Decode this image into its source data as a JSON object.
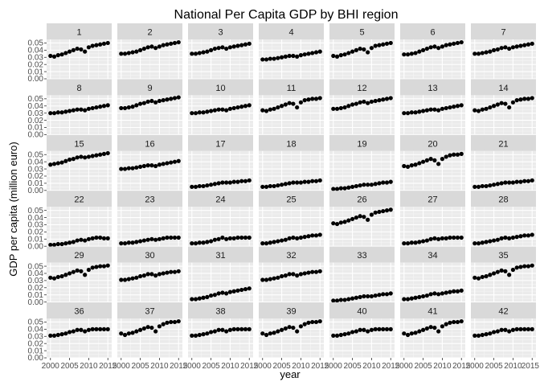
{
  "chart_data": {
    "type": "scatter",
    "title": "National Per Capita GDP by BHI region",
    "xlabel": "year",
    "ylabel": "GDP per capita (million euro)",
    "xlim": [
      1999,
      2016
    ],
    "ylim": [
      0.0,
      0.055
    ],
    "x_ticks": [
      2000,
      2005,
      2010,
      2015
    ],
    "x_tick_labels": [
      "2000",
      "2005",
      "2010",
      "2015"
    ],
    "y_ticks": [
      0.0,
      0.01,
      0.02,
      0.03,
      0.04,
      0.05
    ],
    "y_tick_labels": [
      "0.00",
      "0.01",
      "0.02",
      "0.03",
      "0.04",
      "0.05"
    ],
    "grid": true,
    "facet_layout": {
      "rows": 6,
      "cols": 7
    },
    "x": [
      2000,
      2001,
      2002,
      2003,
      2004,
      2005,
      2006,
      2007,
      2008,
      2009,
      2010,
      2011,
      2012,
      2013,
      2014,
      2015
    ],
    "panels": [
      {
        "label": "1",
        "values": [
          0.032,
          0.031,
          0.033,
          0.034,
          0.036,
          0.038,
          0.04,
          0.042,
          0.041,
          0.038,
          0.044,
          0.046,
          0.047,
          0.048,
          0.049,
          0.05
        ]
      },
      {
        "label": "2",
        "values": [
          0.035,
          0.035,
          0.036,
          0.037,
          0.038,
          0.04,
          0.042,
          0.044,
          0.045,
          0.043,
          0.045,
          0.047,
          0.048,
          0.049,
          0.05,
          0.051
        ]
      },
      {
        "label": "3",
        "values": [
          0.035,
          0.035,
          0.036,
          0.037,
          0.038,
          0.04,
          0.042,
          0.043,
          0.044,
          0.042,
          0.044,
          0.045,
          0.046,
          0.047,
          0.048,
          0.049
        ]
      },
      {
        "label": "4",
        "values": [
          0.027,
          0.027,
          0.028,
          0.028,
          0.029,
          0.03,
          0.031,
          0.032,
          0.032,
          0.031,
          0.033,
          0.034,
          0.035,
          0.036,
          0.037,
          0.038
        ]
      },
      {
        "label": "5",
        "values": [
          0.032,
          0.031,
          0.033,
          0.034,
          0.036,
          0.038,
          0.04,
          0.042,
          0.041,
          0.037,
          0.043,
          0.046,
          0.047,
          0.048,
          0.049,
          0.05
        ]
      },
      {
        "label": "6",
        "values": [
          0.034,
          0.034,
          0.035,
          0.036,
          0.038,
          0.04,
          0.042,
          0.044,
          0.045,
          0.043,
          0.045,
          0.047,
          0.048,
          0.049,
          0.05,
          0.051
        ]
      },
      {
        "label": "7",
        "values": [
          0.035,
          0.035,
          0.036,
          0.037,
          0.038,
          0.04,
          0.041,
          0.043,
          0.044,
          0.042,
          0.044,
          0.045,
          0.046,
          0.047,
          0.048,
          0.049
        ]
      },
      {
        "label": "8",
        "values": [
          0.03,
          0.03,
          0.031,
          0.031,
          0.032,
          0.033,
          0.034,
          0.035,
          0.035,
          0.034,
          0.036,
          0.037,
          0.038,
          0.039,
          0.04,
          0.041
        ]
      },
      {
        "label": "9",
        "values": [
          0.037,
          0.037,
          0.038,
          0.039,
          0.041,
          0.043,
          0.044,
          0.046,
          0.047,
          0.045,
          0.047,
          0.048,
          0.049,
          0.05,
          0.051,
          0.052
        ]
      },
      {
        "label": "10",
        "values": [
          0.03,
          0.03,
          0.031,
          0.031,
          0.032,
          0.033,
          0.034,
          0.035,
          0.035,
          0.034,
          0.036,
          0.037,
          0.038,
          0.039,
          0.04,
          0.041
        ]
      },
      {
        "label": "11",
        "values": [
          0.034,
          0.033,
          0.035,
          0.036,
          0.038,
          0.04,
          0.042,
          0.044,
          0.043,
          0.038,
          0.045,
          0.048,
          0.049,
          0.05,
          0.05,
          0.051
        ]
      },
      {
        "label": "12",
        "values": [
          0.036,
          0.036,
          0.037,
          0.038,
          0.04,
          0.042,
          0.043,
          0.045,
          0.046,
          0.044,
          0.046,
          0.047,
          0.048,
          0.049,
          0.05,
          0.051
        ]
      },
      {
        "label": "13",
        "values": [
          0.03,
          0.03,
          0.031,
          0.031,
          0.032,
          0.033,
          0.034,
          0.035,
          0.035,
          0.034,
          0.036,
          0.037,
          0.038,
          0.039,
          0.04,
          0.041
        ]
      },
      {
        "label": "14",
        "values": [
          0.034,
          0.033,
          0.035,
          0.036,
          0.038,
          0.04,
          0.042,
          0.044,
          0.043,
          0.038,
          0.045,
          0.048,
          0.049,
          0.05,
          0.05,
          0.051
        ]
      },
      {
        "label": "15",
        "values": [
          0.036,
          0.037,
          0.038,
          0.039,
          0.041,
          0.043,
          0.044,
          0.046,
          0.047,
          0.046,
          0.047,
          0.048,
          0.049,
          0.05,
          0.051,
          0.052
        ]
      },
      {
        "label": "16",
        "values": [
          0.03,
          0.03,
          0.031,
          0.031,
          0.032,
          0.033,
          0.034,
          0.035,
          0.035,
          0.034,
          0.036,
          0.037,
          0.038,
          0.039,
          0.04,
          0.041
        ]
      },
      {
        "label": "17",
        "values": [
          0.005,
          0.005,
          0.006,
          0.006,
          0.007,
          0.008,
          0.009,
          0.01,
          0.011,
          0.011,
          0.011,
          0.012,
          0.012,
          0.013,
          0.013,
          0.014
        ]
      },
      {
        "label": "18",
        "values": [
          0.005,
          0.005,
          0.006,
          0.006,
          0.007,
          0.008,
          0.009,
          0.01,
          0.011,
          0.011,
          0.011,
          0.012,
          0.012,
          0.013,
          0.013,
          0.014
        ]
      },
      {
        "label": "19",
        "values": [
          0.002,
          0.002,
          0.003,
          0.003,
          0.004,
          0.005,
          0.006,
          0.007,
          0.008,
          0.008,
          0.008,
          0.009,
          0.01,
          0.011,
          0.011,
          0.012
        ]
      },
      {
        "label": "20",
        "values": [
          0.034,
          0.033,
          0.035,
          0.036,
          0.038,
          0.04,
          0.042,
          0.044,
          0.042,
          0.037,
          0.044,
          0.047,
          0.049,
          0.05,
          0.05,
          0.051
        ]
      },
      {
        "label": "21",
        "values": [
          0.005,
          0.005,
          0.006,
          0.006,
          0.007,
          0.008,
          0.009,
          0.01,
          0.011,
          0.011,
          0.011,
          0.012,
          0.012,
          0.013,
          0.013,
          0.014
        ]
      },
      {
        "label": "22",
        "values": [
          0.002,
          0.002,
          0.003,
          0.003,
          0.004,
          0.005,
          0.006,
          0.008,
          0.009,
          0.008,
          0.01,
          0.011,
          0.012,
          0.012,
          0.011,
          0.011
        ]
      },
      {
        "label": "23",
        "values": [
          0.004,
          0.004,
          0.005,
          0.005,
          0.006,
          0.007,
          0.008,
          0.009,
          0.01,
          0.009,
          0.01,
          0.011,
          0.012,
          0.012,
          0.012,
          0.012
        ]
      },
      {
        "label": "24",
        "values": [
          0.004,
          0.004,
          0.005,
          0.005,
          0.006,
          0.007,
          0.009,
          0.01,
          0.012,
          0.01,
          0.011,
          0.011,
          0.012,
          0.012,
          0.012,
          0.012
        ]
      },
      {
        "label": "25",
        "values": [
          0.004,
          0.004,
          0.005,
          0.006,
          0.007,
          0.008,
          0.009,
          0.011,
          0.012,
          0.011,
          0.012,
          0.013,
          0.014,
          0.015,
          0.015,
          0.016
        ]
      },
      {
        "label": "26",
        "values": [
          0.032,
          0.031,
          0.033,
          0.034,
          0.036,
          0.038,
          0.04,
          0.042,
          0.041,
          0.037,
          0.044,
          0.047,
          0.048,
          0.049,
          0.05,
          0.051
        ]
      },
      {
        "label": "27",
        "values": [
          0.004,
          0.004,
          0.005,
          0.005,
          0.006,
          0.007,
          0.008,
          0.01,
          0.011,
          0.01,
          0.011,
          0.011,
          0.012,
          0.012,
          0.012,
          0.012
        ]
      },
      {
        "label": "28",
        "values": [
          0.004,
          0.004,
          0.005,
          0.006,
          0.007,
          0.008,
          0.009,
          0.011,
          0.012,
          0.011,
          0.012,
          0.013,
          0.014,
          0.015,
          0.015,
          0.016
        ]
      },
      {
        "label": "29",
        "values": [
          0.034,
          0.033,
          0.035,
          0.036,
          0.038,
          0.04,
          0.042,
          0.044,
          0.043,
          0.038,
          0.045,
          0.048,
          0.049,
          0.05,
          0.05,
          0.051
        ]
      },
      {
        "label": "30",
        "values": [
          0.031,
          0.031,
          0.032,
          0.033,
          0.034,
          0.036,
          0.037,
          0.039,
          0.039,
          0.037,
          0.039,
          0.04,
          0.041,
          0.042,
          0.042,
          0.043
        ]
      },
      {
        "label": "31",
        "values": [
          0.004,
          0.004,
          0.005,
          0.006,
          0.007,
          0.009,
          0.01,
          0.012,
          0.013,
          0.012,
          0.014,
          0.015,
          0.016,
          0.017,
          0.018,
          0.019
        ]
      },
      {
        "label": "32",
        "values": [
          0.031,
          0.031,
          0.032,
          0.033,
          0.034,
          0.036,
          0.037,
          0.039,
          0.039,
          0.037,
          0.039,
          0.04,
          0.041,
          0.042,
          0.042,
          0.043
        ]
      },
      {
        "label": "33",
        "values": [
          0.002,
          0.002,
          0.003,
          0.003,
          0.004,
          0.005,
          0.006,
          0.007,
          0.008,
          0.008,
          0.008,
          0.009,
          0.01,
          0.011,
          0.011,
          0.012
        ]
      },
      {
        "label": "34",
        "values": [
          0.004,
          0.004,
          0.005,
          0.006,
          0.007,
          0.008,
          0.009,
          0.011,
          0.012,
          0.011,
          0.012,
          0.013,
          0.014,
          0.015,
          0.015,
          0.016
        ]
      },
      {
        "label": "35",
        "values": [
          0.034,
          0.033,
          0.035,
          0.036,
          0.038,
          0.04,
          0.042,
          0.044,
          0.043,
          0.038,
          0.045,
          0.048,
          0.049,
          0.05,
          0.05,
          0.051
        ]
      },
      {
        "label": "36",
        "values": [
          0.031,
          0.031,
          0.032,
          0.033,
          0.034,
          0.036,
          0.037,
          0.039,
          0.039,
          0.037,
          0.039,
          0.04,
          0.04,
          0.04,
          0.04,
          0.04
        ]
      },
      {
        "label": "37",
        "values": [
          0.034,
          0.032,
          0.034,
          0.035,
          0.037,
          0.039,
          0.041,
          0.043,
          0.042,
          0.037,
          0.044,
          0.047,
          0.049,
          0.05,
          0.05,
          0.051
        ]
      },
      {
        "label": "38",
        "values": [
          0.031,
          0.031,
          0.032,
          0.033,
          0.034,
          0.036,
          0.037,
          0.039,
          0.039,
          0.037,
          0.039,
          0.04,
          0.04,
          0.04,
          0.04,
          0.04
        ]
      },
      {
        "label": "39",
        "values": [
          0.034,
          0.032,
          0.034,
          0.035,
          0.037,
          0.039,
          0.041,
          0.043,
          0.042,
          0.037,
          0.044,
          0.047,
          0.049,
          0.05,
          0.05,
          0.051
        ]
      },
      {
        "label": "40",
        "values": [
          0.031,
          0.031,
          0.032,
          0.033,
          0.034,
          0.036,
          0.037,
          0.039,
          0.039,
          0.037,
          0.039,
          0.04,
          0.04,
          0.04,
          0.04,
          0.04
        ]
      },
      {
        "label": "41",
        "values": [
          0.034,
          0.032,
          0.034,
          0.035,
          0.037,
          0.039,
          0.041,
          0.043,
          0.042,
          0.037,
          0.044,
          0.047,
          0.049,
          0.05,
          0.05,
          0.051
        ]
      },
      {
        "label": "42",
        "values": [
          0.031,
          0.031,
          0.032,
          0.033,
          0.034,
          0.036,
          0.037,
          0.039,
          0.039,
          0.037,
          0.039,
          0.04,
          0.04,
          0.04,
          0.04,
          0.04
        ]
      }
    ],
    "colors": {
      "panel_bg": "#ebebeb",
      "strip_bg": "#d9d9d9",
      "grid_major": "#ffffff",
      "grid_minor": "#f5f5f5",
      "point": "#000000",
      "tick_text": "#4d4d4d",
      "tick_mark": "#333333"
    }
  }
}
